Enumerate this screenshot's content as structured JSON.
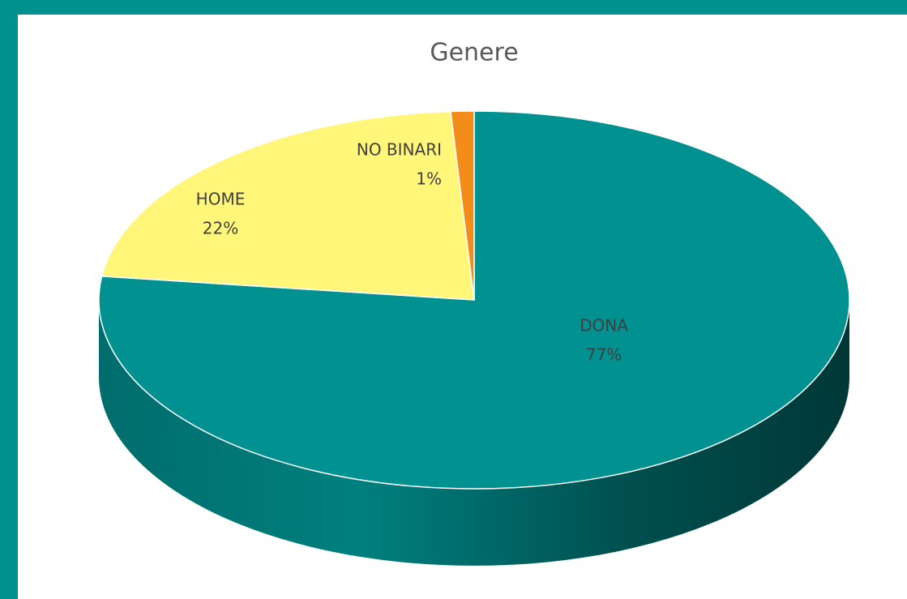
{
  "chart_data": {
    "type": "pie",
    "title": "Genere",
    "categories": [
      "DONA",
      "HOME",
      "NO BINARI"
    ],
    "values": [
      77,
      22,
      1
    ],
    "value_labels": [
      "77%",
      "22%",
      "1%"
    ],
    "colors": [
      "#009190",
      "#fff67a",
      "#f28c1a"
    ]
  }
}
